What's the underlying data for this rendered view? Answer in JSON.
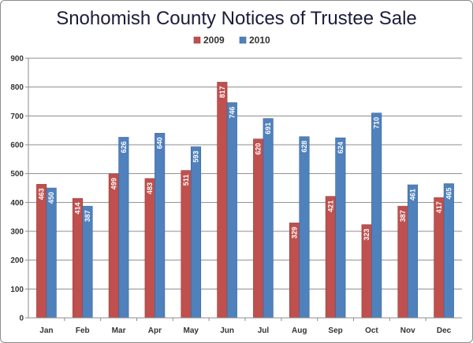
{
  "chart_data": {
    "type": "bar",
    "title": "Snohomish County Notices of Trustee Sale",
    "categories": [
      "Jan",
      "Feb",
      "Mar",
      "Apr",
      "May",
      "Jun",
      "Jul",
      "Aug",
      "Sep",
      "Oct",
      "Nov",
      "Dec"
    ],
    "series": [
      {
        "name": "2009",
        "color": "#c0504d",
        "values": [
          463,
          414,
          499,
          483,
          511,
          817,
          620,
          329,
          421,
          323,
          387,
          417
        ]
      },
      {
        "name": "2010",
        "color": "#4f81bd",
        "values": [
          450,
          387,
          626,
          640,
          593,
          746,
          691,
          628,
          624,
          710,
          461,
          465
        ]
      }
    ],
    "ylim": [
      0,
      900
    ],
    "yticks": [
      "0",
      "100",
      "200",
      "300",
      "400",
      "500",
      "600",
      "700",
      "800",
      "900"
    ],
    "grid": true,
    "legend_position": "top-center",
    "data_labels": true
  }
}
